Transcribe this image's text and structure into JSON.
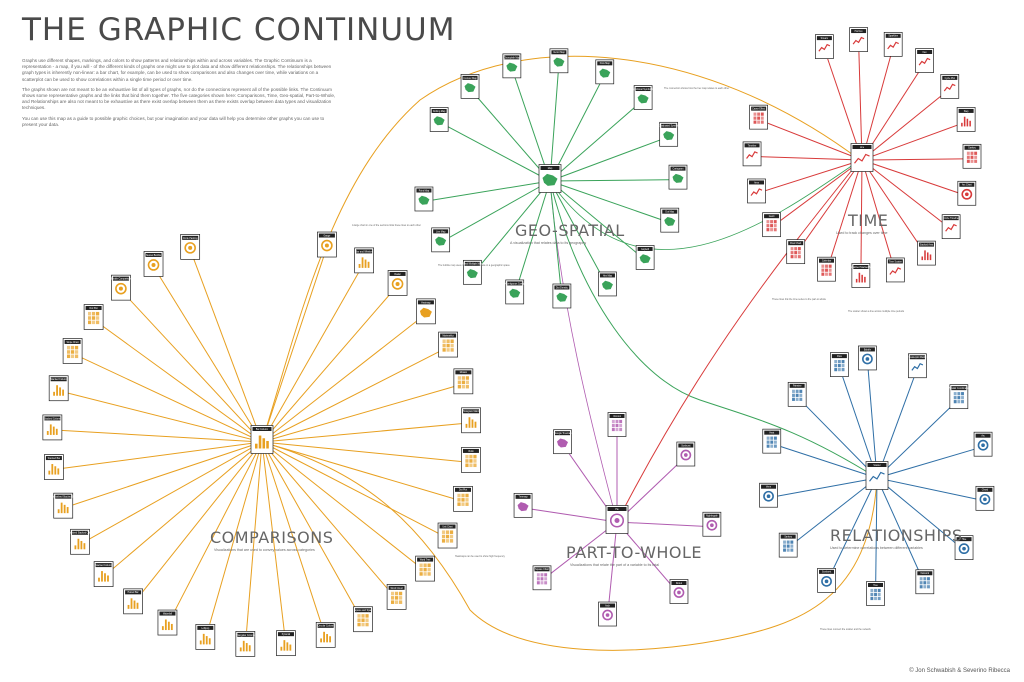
{
  "title": "THE GRAPHIC CONTINUUM",
  "intro": [
    "Graphs use different shapes, markings, and colors to show patterns and relationships within and across variables. The Graphic Continuum is a representation - a map, if you will - of the different kinds of graphs one might use to plot data and show different relationships. The relationships between graph types is inherently non-linear: a bar chart, for example, can be used to show comparisons and also changes over time, while variations on a scatterplot can be used to show correlations within a single time period or over time.",
    "The graphs shown are not meant to be an exhaustive list of all types of graphs, nor do the connections represent all of the possible links. The Continuum shows some representative graphs and the links that bind them together. The five categories shown here: Comparisons, Time, Geo-spatial, Part-to-Whole, and Relationships are also not meant to be exhaustive as there exist overlap between them as there exists overlap between data types and visualization techniques.",
    "You can use this map as a guide to possible graphic choices, but your imagination and your data will help you determine other graphs you can use to present your data."
  ],
  "credit": "© Jon Schwabish & Severino Ribecca",
  "categories": [
    {
      "title": "COMPARISONS",
      "subtitle": "Visualizations that are used to convey values across categories",
      "color": "#e8a020"
    },
    {
      "title": "GEO-SPATIAL",
      "subtitle": "A visualization that relates data to its geography",
      "color": "#3aa35a"
    },
    {
      "title": "TIME",
      "subtitle": "Used to track changes over time",
      "color": "#d83a3a"
    },
    {
      "title": "PART-TO-WHOLE",
      "subtitle": "Visualizations that relate the part of a variable to its total",
      "color": "#b05cb0"
    },
    {
      "title": "RELATIONSHIPS",
      "subtitle": "Used to determine correlations between different variables",
      "color": "#2f6fa6"
    }
  ],
  "hubs": {
    "comparisons": "Bar Column",
    "geo": "Map",
    "time": "Line",
    "part": "Pie",
    "relationships": "Scatter"
  },
  "comparisons_nodes": [
    "Gauge",
    "Bar and Whisker",
    "Radar",
    "Heatmap",
    "Marimekko",
    "Mosaic",
    "Histogram Matrix",
    "Violin",
    "Dot Plot",
    "Unit Chart",
    "Word Tree",
    "Word Cloud",
    "Square and Span",
    "Circular Column",
    "Pyramid",
    "Triangular Column",
    "Lollipop",
    "Waterfall",
    "Paired Bar",
    "Stacked Column",
    "Normalized Stacked Column",
    "Normalized Stacked Bar",
    "Stacked Bar",
    "Stacked Column",
    "Stacked Column",
    "Slope Chart",
    "Dot Plot",
    "Bubble Comparison",
    "Nested Bubble",
    "Circle Packing"
  ],
  "geo_nodes": [
    "Dorling Map",
    "Contour Map",
    "Choropleth Map",
    "Vector Map",
    "Flow Map",
    "Proportional Symbol Map",
    "Graduated Symbol",
    "Cartogram",
    "Dot Map",
    "Isopleth",
    "Hex Map",
    "Dot Density",
    "Non-Contiguous Cartogram",
    "Small Multiple Map",
    "Line Map",
    "Point Map"
  ],
  "time_nodes": [
    "Stream",
    "Horizon",
    "Sparkline",
    "Fan",
    "Cycle Plot",
    "Step",
    "Sankey",
    "Arc Chart",
    "Circle Timeline",
    "Stacked Area",
    "Time Scatter",
    "Normalized Stacked Area",
    "Calendar",
    "Flow Chart",
    "Gantt",
    "Area",
    "Timeline",
    "Cause Effect"
  ],
  "part_nodes": [
    "Pie",
    "Voronoi",
    "Sunburst",
    "Nightingale",
    "Donut",
    "Arch",
    "Square Chart",
    "Treemap",
    "Triangle Treemap"
  ],
  "relationship_nodes": [
    "Scatter",
    "Bubble",
    "Scatterplot Matrix",
    "Parallel Coordinates",
    "Arc",
    "Chord",
    "Hive",
    "Network",
    "Tree",
    "Sunburst",
    "Sankey",
    "Venn",
    "Heat",
    "Pairwise",
    "Flow"
  ],
  "notes": [
    "A large chart in one of the sections links these lines to each other",
    "The bubble map uses circles to encode data on a geographic space",
    "These lines link the time series to the part-to-whole",
    "Heatmaps can be used to show high frequency",
    "The connection shows how the hex map relates to each other",
    "The scatter shows a line across multiple time periods",
    "These lines connect the scatter and the network"
  ]
}
